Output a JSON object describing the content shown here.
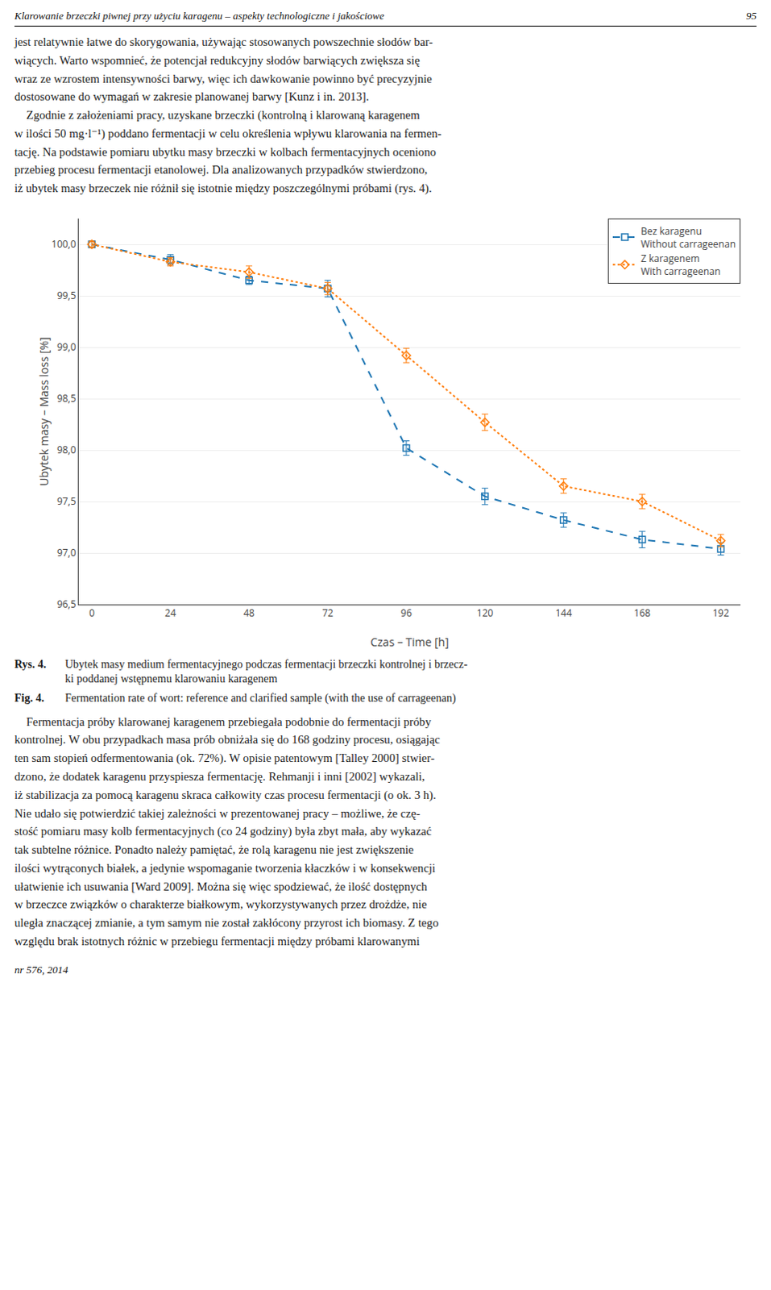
{
  "header": "Klarowanie brzeczki piwnej przy użyciu karagenu – aspekty technologiczne i jakościowe",
  "page_number": "95",
  "text_above": "jest relatywnie łatwe do skorygowania, używając stosowanych powszechnie słodów bar-\nwiących. Warto wspomnieć, że potencjał redukcyjny słodów barwiących zwiększa się\nwraz ze wzrostem intensywności barwy, więc ich dawkowanie powinno być precyzyjnie\ndostosowane do wymagań w zakresie planowanej barwy [Kunz i in. 2013].\n    Zgodnie z założeniami pracy, uzyskane brzeczki (kontrolną i klarowaną karagenem\nw ilości 50 mg·l⁻¹) poddano fermentacji w celu określenia wpływu klarowania na fermen-\ntację. Na podstawie pomiaru ubytku masy brzeczki w kolbach fermentacyjnych oceniono\nprzebieg procesu fermentacji etanolowej. Dla analizowanych przypadków stwierdzono,\niż ubytek masy brzeczek nie różnił się istotnie między poszczególnymi próbami (rys. 4).",
  "caption": [
    {
      "label": "Rys. 4.",
      "text": "Ubytek masy medium fermentacyjnego podczas fermentacji brzeczki kontrolnej i brzecz-\nki poddanej wstępnemu klarowaniu karagenem"
    },
    {
      "label": "Fig. 4.",
      "text": "Fermentation rate of wort: reference and clarified sample (with the use of carrageenan)"
    }
  ],
  "text_below": "    Fermentacja próby klarowanej karagenem przebiegała podobnie do fermentacji próby\nkontrolnej. W obu przypadkach masa prób obniżała się do 168 godziny procesu, osiągając\nten sam stopień odfermentowania (ok. 72%). W opisie patentowym [Talley 2000] stwier-\ndzono, że dodatek karagenu przyspiesza fermentację. Rehmanji i inni [2002] wykazali,\niż stabilizacja za pomocą karagenu skraca całkowity czas procesu fermentacji (o ok. 3 h).\nNie udało się potwierdzić takiej zależności w prezentowanej pracy – możliwe, że czę-\nstość pomiaru masy kolb fermentacyjnych (co 24 godziny) była zbyt mała, aby wykazać\ntak subtelne różnice. Ponadto należy pamiętać, że rolą karagenu nie jest zwiększenie\nilości wytrąconych białek, a jedynie wspomaganie tworzenia kłaczków i w konsekwencji\nułatwienie ich usuwania [Ward 2009]. Można się więc spodziewać, że ilość dostępnych\nw brzeczce związków o charakterze białkowym, wykorzystywanych przez drożdże, nie\nuległa znaczącej zmianie, a tym samym nie został zakłócony przyrost ich biomasy. Z tego\nwzględu brak istotnych różnic w przebiegu fermentacji między próbami klarowanymi",
  "footer": "nr 576, 2014",
  "chart_data": {
    "type": "line",
    "x_label": "Czas – Time [h]",
    "y_label": "Ubytek masy – Mass loss [%]",
    "xlim": [
      -4,
      198
    ],
    "xticks": [
      0,
      24,
      48,
      72,
      96,
      120,
      144,
      168,
      192
    ],
    "ylim": [
      96.5,
      100.25
    ],
    "yticks": [
      {
        "value": 96.5,
        "label": "96,5"
      },
      {
        "value": 97.0,
        "label": "97,0"
      },
      {
        "value": 97.5,
        "label": "97,5"
      },
      {
        "value": 98.0,
        "label": "98,0"
      },
      {
        "value": 98.5,
        "label": "98,5"
      },
      {
        "value": 99.0,
        "label": "99,0"
      },
      {
        "value": 99.5,
        "label": "99,5"
      },
      {
        "value": 100.0,
        "label": "100,0"
      }
    ],
    "grid": "y",
    "legend": "upper right",
    "series": [
      {
        "name": "Bez karagenu\nWithout carrageenan",
        "marker": "square",
        "line_style": "dash",
        "x": [
          0,
          24,
          48,
          72,
          96,
          120,
          144,
          168,
          192
        ],
        "values": [
          100.0,
          99.85,
          99.65,
          99.57,
          98.02,
          97.55,
          97.32,
          97.13,
          97.04
        ],
        "yerr": [
          0.03,
          0.05,
          0.04,
          0.08,
          0.07,
          0.08,
          0.07,
          0.08,
          0.06
        ]
      },
      {
        "name": "Z karagenem\nWith carrageenan",
        "marker": "diamond",
        "line_style": "dot",
        "x": [
          0,
          24,
          48,
          72,
          96,
          120,
          144,
          168,
          192
        ],
        "values": [
          100.0,
          99.83,
          99.73,
          99.57,
          98.92,
          98.27,
          97.65,
          97.5,
          97.12
        ],
        "yerr": [
          0.03,
          0.04,
          0.06,
          0.06,
          0.07,
          0.08,
          0.07,
          0.07,
          0.06
        ]
      }
    ]
  }
}
